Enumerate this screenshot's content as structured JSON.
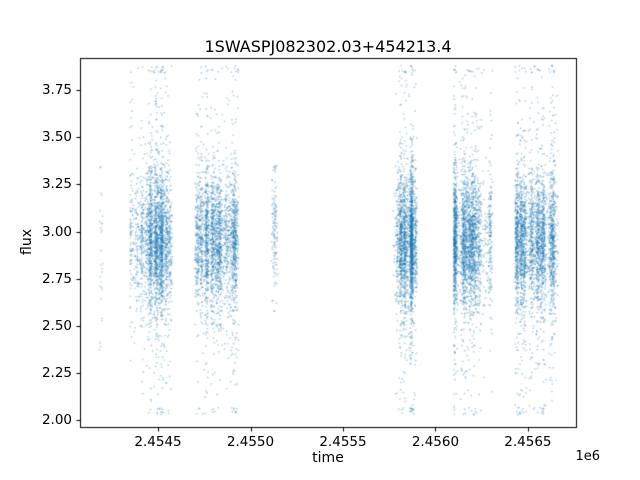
{
  "figure": {
    "background": "#ffffff",
    "frame_color": "#000000"
  },
  "chart_data": {
    "type": "scatter",
    "title": "1SWASPJ082302.03+454213.4",
    "xlabel": "time",
    "ylabel": "flux",
    "x_offset_label": "1e6",
    "xlim": [
      2454078,
      2456760
    ],
    "ylim": [
      1.965,
      3.92
    ],
    "xticks": [
      2454500,
      2455000,
      2455500,
      2456000,
      2456500
    ],
    "xtick_labels": [
      "2.4545",
      "2.4550",
      "2.4555",
      "2.4560",
      "2.4565"
    ],
    "yticks": [
      2.0,
      2.25,
      2.5,
      2.75,
      3.0,
      3.25,
      3.5,
      3.75
    ],
    "ytick_labels": [
      "2.00",
      "2.25",
      "2.50",
      "2.75",
      "3.00",
      "3.25",
      "3.50",
      "3.75"
    ],
    "marker_color": "#1f77b4",
    "marker_alpha": 0.4,
    "marker_size": 1.4,
    "grid": false,
    "legend": "none",
    "clusters": [
      {
        "x0": 2454180,
        "x1": 2454200,
        "n": 28,
        "stripes": 2,
        "stripe_sigma": 3,
        "spread_frac": 0.3,
        "y_mean": 2.9,
        "y_core_std": 0.25,
        "y_tail_std": 0.4,
        "tail_frac": 0.3,
        "y_min": 2.35,
        "y_max": 3.35
      },
      {
        "x0": 2454350,
        "x1": 2454578,
        "n": 2600,
        "stripes": 16,
        "stripe_sigma": 6,
        "spread_frac": 0.12,
        "y_mean": 2.95,
        "y_core_std": 0.17,
        "y_tail_std": 0.48,
        "tail_frac": 0.2,
        "y_min": 2.03,
        "y_max": 3.88
      },
      {
        "x0": 2454700,
        "x1": 2454935,
        "n": 2600,
        "stripes": 15,
        "stripe_sigma": 6,
        "spread_frac": 0.12,
        "y_mean": 2.95,
        "y_core_std": 0.17,
        "y_tail_std": 0.48,
        "tail_frac": 0.2,
        "y_min": 2.03,
        "y_max": 3.88
      },
      {
        "x0": 2455112,
        "x1": 2455150,
        "n": 130,
        "stripes": 3,
        "stripe_sigma": 4,
        "spread_frac": 0.15,
        "y_mean": 3.0,
        "y_core_std": 0.14,
        "y_tail_std": 0.3,
        "tail_frac": 0.2,
        "y_min": 2.55,
        "y_max": 3.35
      },
      {
        "x0": 2455772,
        "x1": 2455902,
        "n": 2300,
        "stripes": 10,
        "stripe_sigma": 5,
        "spread_frac": 0.12,
        "y_mean": 2.95,
        "y_core_std": 0.17,
        "y_tail_std": 0.48,
        "tail_frac": 0.2,
        "y_min": 2.03,
        "y_max": 3.88
      },
      {
        "x0": 2456100,
        "x1": 2456308,
        "n": 2700,
        "stripes": 14,
        "stripe_sigma": 6,
        "spread_frac": 0.12,
        "y_mean": 2.95,
        "y_core_std": 0.17,
        "y_tail_std": 0.48,
        "tail_frac": 0.2,
        "y_min": 2.03,
        "y_max": 3.88
      },
      {
        "x0": 2456432,
        "x1": 2456665,
        "n": 3000,
        "stripes": 16,
        "stripe_sigma": 6,
        "spread_frac": 0.12,
        "y_mean": 2.95,
        "y_core_std": 0.17,
        "y_tail_std": 0.48,
        "tail_frac": 0.2,
        "y_min": 2.03,
        "y_max": 3.88
      }
    ]
  }
}
